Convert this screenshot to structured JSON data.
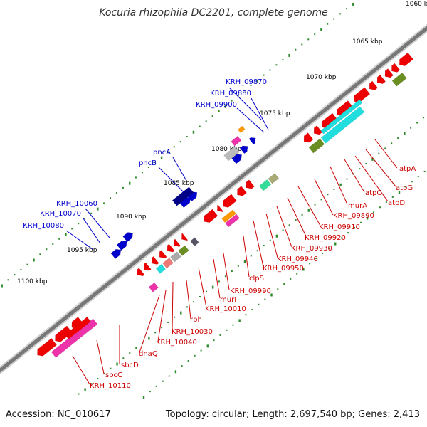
{
  "title": "Kocuria rhizophila DC2201, complete genome",
  "footer": {
    "accession": "Accession: NC_010617",
    "stats": "Topology: circular; Length: 2,697,540 bp; Genes: 2,413"
  },
  "scale_labels": [
    "1060 kbp",
    "1065 kbp",
    "1070 kbp",
    "1075 kbp",
    "1080 kbp",
    "1085 kbp",
    "1090 kbp",
    "1095 kbp",
    "1100 kbp"
  ],
  "colors": {
    "backbone": "#777777",
    "tick": "#2e8b2e",
    "plus_gene": "#0000cc",
    "minus_gene": "#ee0000",
    "cyan": "#22dddd",
    "olive": "#6b8e23",
    "magenta": "#ee33aa",
    "orange": "#ff9900",
    "gray": "#aaaaaa"
  },
  "labels_plus": [
    "KRH_09870",
    "KRH_09880",
    "KRH_09900",
    "pncA",
    "pncB",
    "KRH_10060",
    "KRH_10070",
    "KRH_10080"
  ],
  "labels_minus": [
    "atpA",
    "atpG",
    "atpD",
    "atpC",
    "murA",
    "KRH_09890",
    "KRH_09910",
    "KRH_09920",
    "KRH_09930",
    "KRH_09940",
    "KRH_09950",
    "clpS",
    "KRH_09990",
    "murI",
    "KRH_10010",
    "rph",
    "KRH_10030",
    "KRH_10040",
    "dnaQ",
    "sbcD",
    "sbcC",
    "KRH_10110"
  ]
}
